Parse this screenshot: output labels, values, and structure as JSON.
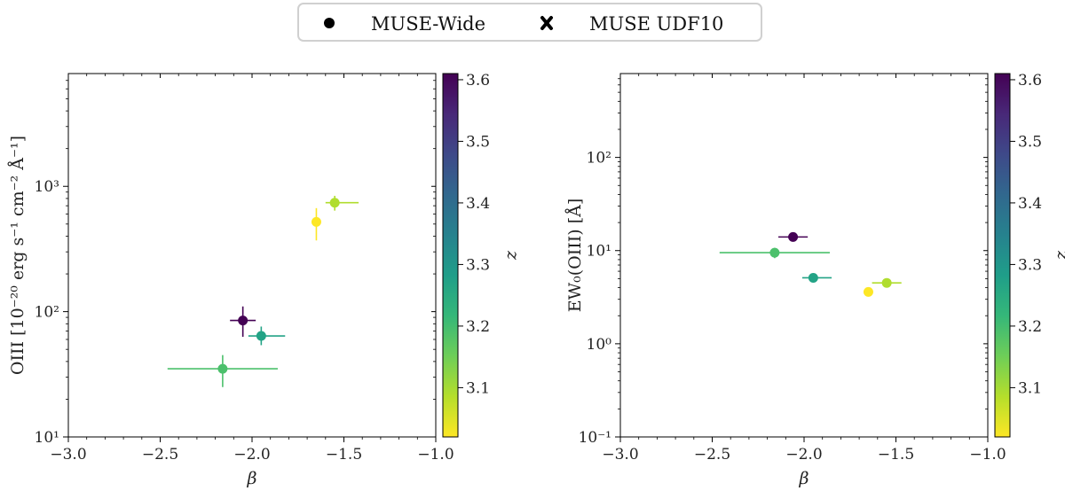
{
  "legend": {
    "entries": [
      {
        "label": "MUSE-Wide",
        "marker": "circle"
      },
      {
        "label": "MUSE UDF10",
        "marker": "x"
      }
    ]
  },
  "colorbar": {
    "label": "z",
    "range": [
      3.02,
      3.61
    ],
    "ticks": [
      "3.1",
      "3.2",
      "3.3",
      "3.4",
      "3.5",
      "3.6"
    ],
    "tick_values": [
      3.1,
      3.2,
      3.3,
      3.4,
      3.5,
      3.6
    ],
    "colormap_stops": [
      "#fde725",
      "#b5de2b",
      "#6ece58",
      "#35b779",
      "#1f9e89",
      "#26828e",
      "#31688e",
      "#3e4989",
      "#482878",
      "#440154"
    ]
  },
  "chart_data": [
    {
      "type": "scatter",
      "xlabel": "β",
      "ylabel": "OIII [10⁻²⁰ erg s⁻¹ cm⁻² Å⁻¹]",
      "xlim": [
        -3.0,
        -1.0
      ],
      "ylim_log10": [
        1,
        3.9
      ],
      "yscale": "log",
      "xticks": [
        "−3.0",
        "−2.5",
        "−2.0",
        "−1.5",
        "−1.0"
      ],
      "xtick_values": [
        -3.0,
        -2.5,
        -2.0,
        -1.5,
        -1.0
      ],
      "yticks": [
        "10¹",
        "10²",
        "10³"
      ],
      "ytick_values": [
        1,
        2,
        3
      ],
      "points": [
        {
          "x": -2.05,
          "y": 85,
          "xerr": [
            0.07,
            0.07
          ],
          "yerr": [
            22,
            25
          ],
          "z": 3.61
        },
        {
          "x": -1.95,
          "y": 64,
          "xerr": [
            0.07,
            0.13
          ],
          "yerr": [
            10,
            12
          ],
          "z": 3.27
        },
        {
          "x": -2.16,
          "y": 35,
          "xerr": [
            0.3,
            0.3
          ],
          "yerr": [
            10,
            10
          ],
          "z": 3.19
        },
        {
          "x": -1.65,
          "y": 520,
          "xerr": [
            0.02,
            0.02
          ],
          "yerr": [
            150,
            150
          ],
          "z": 3.02
        },
        {
          "x": -1.55,
          "y": 740,
          "xerr": [
            0.05,
            0.13
          ],
          "yerr": [
            100,
            100
          ],
          "z": 3.09
        }
      ]
    },
    {
      "type": "scatter",
      "xlabel": "β",
      "ylabel": "EW₀(OIII) [Å]",
      "xlim": [
        -3.0,
        -1.0
      ],
      "ylim_log10": [
        -1,
        2.9
      ],
      "yscale": "log",
      "xticks": [
        "−3.0",
        "−2.5",
        "−2.0",
        "−1.5",
        "−1.0"
      ],
      "xtick_values": [
        -3.0,
        -2.5,
        -2.0,
        -1.5,
        -1.0
      ],
      "yticks": [
        "10⁻¹",
        "10⁰",
        "10¹",
        "10²"
      ],
      "ytick_values": [
        -1,
        0,
        1,
        2
      ],
      "points": [
        {
          "x": -2.06,
          "y": 14,
          "xerr": [
            0.08,
            0.08
          ],
          "yerr": [
            1.5,
            1.5
          ],
          "z": 3.61
        },
        {
          "x": -1.95,
          "y": 5.1,
          "xerr": [
            0.06,
            0.1
          ],
          "yerr": [
            0.4,
            0.4
          ],
          "z": 3.27
        },
        {
          "x": -2.16,
          "y": 9.5,
          "xerr": [
            0.3,
            0.3
          ],
          "yerr": [
            1.2,
            1.2
          ],
          "z": 3.19
        },
        {
          "x": -1.65,
          "y": 3.6,
          "xerr": [
            0.02,
            0.02
          ],
          "yerr": [
            0.3,
            0.3
          ],
          "z": 3.02
        },
        {
          "x": -1.55,
          "y": 4.5,
          "xerr": [
            0.08,
            0.08
          ],
          "yerr": [
            0.3,
            0.3
          ],
          "z": 3.09
        }
      ]
    }
  ]
}
